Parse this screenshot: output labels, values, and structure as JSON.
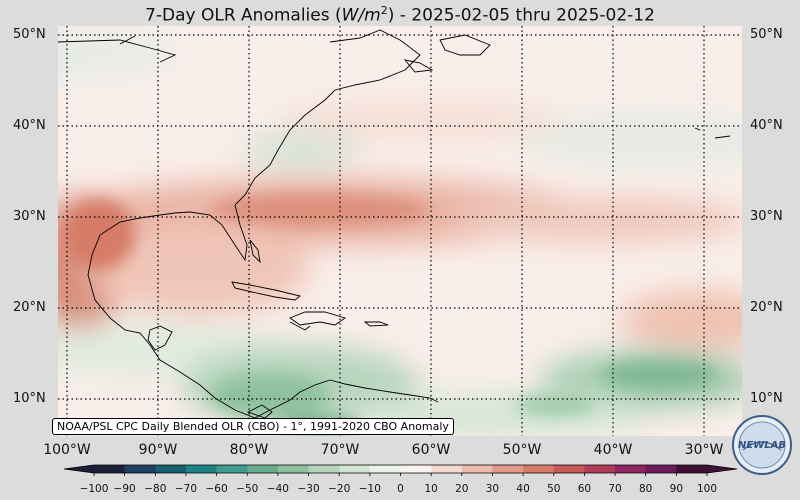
{
  "title": "7-Day OLR Anomalies (W/m²) - 2025-02-05 thru 2025-02-12",
  "title_parts": {
    "prefix": "7-Day OLR Anomalies (",
    "unit_main": "W/m",
    "unit_sup": "2",
    "suffix": ") - 2025-02-05 thru 2025-02-12"
  },
  "credit": "NOAA/PSL CPC Daily Blended OLR (CBO) - 1°, 1991-2020 CBO Anomaly",
  "lat_labels": [
    "50°N",
    "40°N",
    "30°N",
    "20°N",
    "10°N"
  ],
  "lon_labels": [
    "100°W",
    "90°W",
    "80°W",
    "70°W",
    "60°W",
    "50°W",
    "40°W",
    "30°W"
  ],
  "colorbar": {
    "ticks": [
      "−100",
      "−90",
      "−80",
      "−70",
      "−60",
      "−50",
      "−40",
      "−30",
      "−20",
      "−10",
      "0",
      "10",
      "20",
      "30",
      "40",
      "50",
      "60",
      "70",
      "80",
      "90",
      "100"
    ],
    "colors": [
      "#1b1f3a",
      "#1f3f5e",
      "#165f6e",
      "#1b8383",
      "#3f9c8e",
      "#66ad8e",
      "#8dc09f",
      "#b3d3bb",
      "#d3e3d4",
      "#eaf0ea",
      "#fbf1ee",
      "#f5d8cf",
      "#ecbcae",
      "#e29b8a",
      "#d77a68",
      "#c85b57",
      "#b03c5a",
      "#8f2562",
      "#6b1a5a",
      "#3e1036"
    ]
  },
  "logo_text": "NEWLAB",
  "colors": {
    "positive": "#d9806c",
    "negative": "#5ba27e",
    "land_outline": "#000000",
    "frame_bg": "#dcdcdc"
  }
}
